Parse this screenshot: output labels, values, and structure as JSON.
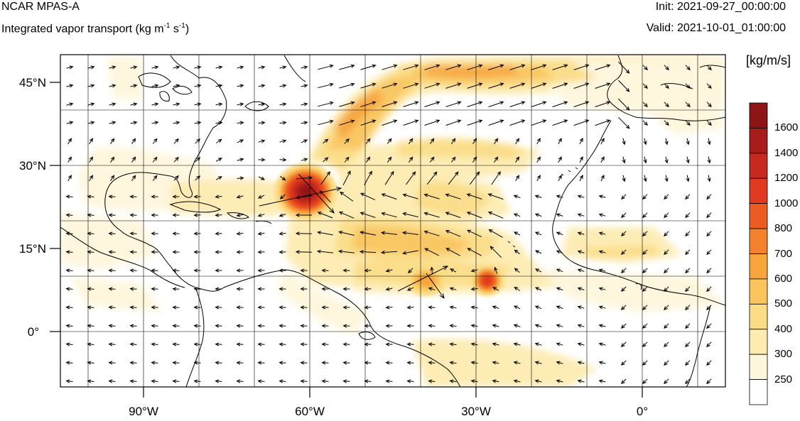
{
  "header": {
    "model": "NCAR MPAS-A",
    "subtitle_pre": "Integrated vapor transport (kg m",
    "subtitle_sup1": "-1",
    "subtitle_mid": " s",
    "subtitle_sup2": "-1",
    "subtitle_post": ")",
    "init": "Init: 2021-09-27_00:00:00",
    "valid": "Valid: 2021-10-01_01:00:00"
  },
  "map": {
    "lon_range": [
      -105,
      15
    ],
    "lat_range": [
      -10,
      50
    ],
    "lat_ticks": [
      "45°N",
      "30°N",
      "15°N",
      "0°"
    ],
    "lon_ticks": [
      "90°W",
      "60°W",
      "30°W",
      "0°"
    ]
  },
  "colorbar": {
    "unit": "[kg/m/s]",
    "levels": [
      "1600",
      "1400",
      "1200",
      "1000",
      "800",
      "700",
      "600",
      "500",
      "400",
      "300",
      "250"
    ],
    "colors": [
      "#8e1515",
      "#a81c1c",
      "#c7291f",
      "#df3a1f",
      "#ec5b22",
      "#f4812b",
      "#f7a43b",
      "#f9c55c",
      "#fbdd85",
      "#fdebb0",
      "#fef6dc",
      "#ffffff"
    ]
  },
  "ivt_features": [
    {
      "lon": -60,
      "lat": 25,
      "ivt": 1600
    },
    {
      "lon": -28,
      "lat": 9,
      "ivt": 900
    },
    {
      "lon": -38,
      "lat": 10,
      "ivt": 700
    },
    {
      "lon": -30,
      "lat": 48,
      "ivt": 700
    }
  ]
}
